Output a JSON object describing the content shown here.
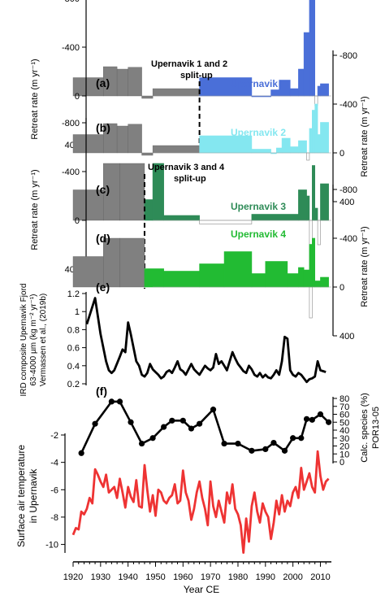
{
  "chart_data": [
    {
      "type": "bar",
      "panel": "(a)",
      "name": "Upernavik 1",
      "color": "#4a6fd8",
      "ylabel": "Retreat rate (m yr⁻¹)",
      "yticks": [
        "-800",
        "-400",
        "0",
        "400"
      ],
      "annotation": [
        "Upernavik 1 and 2",
        "split-up"
      ],
      "segments_pre_splitup": [
        {
          "x0": 1920,
          "x1": 1931,
          "y": -150
        },
        {
          "x0": 1931,
          "x1": 1936,
          "y": -240
        },
        {
          "x0": 1936,
          "x1": 1940,
          "y": -220
        },
        {
          "x0": 1940,
          "x1": 1945,
          "y": -235
        },
        {
          "x0": 1945,
          "x1": 1949,
          "y": 20
        },
        {
          "x0": 1949,
          "x1": 1966,
          "y": -60
        }
      ],
      "segments": [
        {
          "x0": 1966,
          "x1": 1985,
          "y": -150
        },
        {
          "x0": 1985,
          "x1": 1992,
          "y": 0
        },
        {
          "x0": 1992,
          "x1": 1995,
          "y": -50
        },
        {
          "x0": 1995,
          "x1": 1999,
          "y": -130
        },
        {
          "x0": 1999,
          "x1": 2002,
          "y": -60
        },
        {
          "x0": 2002,
          "x1": 2004,
          "y": -220
        },
        {
          "x0": 2004,
          "x1": 2006,
          "y": -520
        },
        {
          "x0": 2006,
          "x1": 2007,
          "y": -880
        },
        {
          "x0": 2007,
          "x1": 2008,
          "y": -1300
        },
        {
          "x0": 2008,
          "x1": 2009,
          "y": 80
        },
        {
          "x0": 2009,
          "x1": 2010,
          "y": -80
        },
        {
          "x0": 2010,
          "x1": 2013,
          "y": -100
        }
      ]
    },
    {
      "type": "bar",
      "panel": "(b)",
      "name": "Upernavik 2",
      "color": "#84e7f0",
      "ylabel": "Retreat rate (m yr⁻¹)",
      "yticks": [
        "-800",
        "-400",
        "0",
        "400"
      ],
      "segments_pre_splitup": [
        {
          "x0": 1920,
          "x1": 1931,
          "y": -150
        },
        {
          "x0": 1931,
          "x1": 1936,
          "y": -240
        },
        {
          "x0": 1936,
          "x1": 1940,
          "y": -220
        },
        {
          "x0": 1940,
          "x1": 1945,
          "y": -235
        },
        {
          "x0": 1945,
          "x1": 1949,
          "y": 20
        },
        {
          "x0": 1949,
          "x1": 1966,
          "y": -60
        }
      ],
      "segments": [
        {
          "x0": 1966,
          "x1": 1985,
          "y": -140
        },
        {
          "x0": 1985,
          "x1": 1992,
          "y": -30
        },
        {
          "x0": 1992,
          "x1": 1994,
          "y": 0
        },
        {
          "x0": 1994,
          "x1": 1996,
          "y": -40
        },
        {
          "x0": 1996,
          "x1": 1999,
          "y": -120
        },
        {
          "x0": 1999,
          "x1": 2002,
          "y": -50
        },
        {
          "x0": 2002,
          "x1": 2005,
          "y": -100
        },
        {
          "x0": 2005,
          "x1": 2006,
          "y": 60
        },
        {
          "x0": 2006,
          "x1": 2007,
          "y": -200
        },
        {
          "x0": 2007,
          "x1": 2008,
          "y": -350
        },
        {
          "x0": 2008,
          "x1": 2009,
          "y": -500
        },
        {
          "x0": 2009,
          "x1": 2010,
          "y": -150
        },
        {
          "x0": 2010,
          "x1": 2013,
          "y": -250
        }
      ]
    },
    {
      "type": "bar",
      "panel": "(c)",
      "name": "Upernavik 3",
      "color": "#2e8b57",
      "ylabel": "Retreat rate (m yr⁻¹)",
      "yticks": [
        "-800",
        "-400",
        "0",
        "400"
      ],
      "annotation": [
        "Upernavik 3 and 4",
        "split-up"
      ],
      "segments_pre_splitup": [
        {
          "x0": 1920,
          "x1": 1931,
          "y": -250
        },
        {
          "x0": 1931,
          "x1": 1937,
          "y": -620
        },
        {
          "x0": 1937,
          "x1": 1946,
          "y": -1000
        }
      ],
      "segments": [
        {
          "x0": 1946,
          "x1": 1949,
          "y": -170
        },
        {
          "x0": 1949,
          "x1": 1953,
          "y": -480
        },
        {
          "x0": 1953,
          "x1": 1966,
          "y": -40
        },
        {
          "x0": 1966,
          "x1": 1985,
          "y": 30
        },
        {
          "x0": 1985,
          "x1": 2002,
          "y": -50
        },
        {
          "x0": 2002,
          "x1": 2005,
          "y": -250
        },
        {
          "x0": 2005,
          "x1": 2006,
          "y": -200
        },
        {
          "x0": 2006,
          "x1": 2007,
          "y": 800
        },
        {
          "x0": 2007,
          "x1": 2008,
          "y": -450
        },
        {
          "x0": 2008,
          "x1": 2009,
          "y": -100
        },
        {
          "x0": 2009,
          "x1": 2010,
          "y": 200
        },
        {
          "x0": 2010,
          "x1": 2013,
          "y": -300
        }
      ]
    },
    {
      "type": "bar",
      "panel": "(d)",
      "name": "Upernavik 4",
      "color": "#22bb33",
      "ylabel": "Retreat rate (m yr⁻¹)",
      "yticks": [
        "-800",
        "-400",
        "0",
        "400"
      ],
      "segments_pre_splitup": [
        {
          "x0": 1920,
          "x1": 1931,
          "y": -250
        },
        {
          "x0": 1931,
          "x1": 1937,
          "y": -620
        },
        {
          "x0": 1937,
          "x1": 1946,
          "y": -1000
        }
      ],
      "segments": [
        {
          "x0": 1946,
          "x1": 1953,
          "y": -150
        },
        {
          "x0": 1953,
          "x1": 1966,
          "y": -130
        },
        {
          "x0": 1966,
          "x1": 1975,
          "y": -190
        },
        {
          "x0": 1975,
          "x1": 1985,
          "y": -290
        },
        {
          "x0": 1985,
          "x1": 1990,
          "y": -110
        },
        {
          "x0": 1990,
          "x1": 1998,
          "y": -210
        },
        {
          "x0": 1998,
          "x1": 2002,
          "y": -110
        },
        {
          "x0": 2002,
          "x1": 2004,
          "y": -160
        },
        {
          "x0": 2004,
          "x1": 2006,
          "y": -140
        },
        {
          "x0": 2006,
          "x1": 2007,
          "y": -350
        },
        {
          "x0": 2007,
          "x1": 2008,
          "y": -650
        },
        {
          "x0": 2008,
          "x1": 2010,
          "y": -50
        },
        {
          "x0": 2010,
          "x1": 2013,
          "y": -80
        }
      ]
    },
    {
      "type": "line",
      "panel": "(e)",
      "color": "#000000",
      "ylabel": [
        "IRD composite Upernavik Fjord",
        "63-4000 µm (kg m⁻² yr⁻¹)",
        "Vermassen et al., (2019b)"
      ],
      "yticks": [
        "0.2",
        "0.4",
        "0.6",
        "0.8",
        "1",
        "1.2"
      ],
      "ylim": [
        0.2,
        1.2
      ],
      "x": [
        1925,
        1928,
        1930,
        1932,
        1933,
        1934,
        1935,
        1937,
        1938,
        1939,
        1940,
        1941,
        1942,
        1943,
        1944,
        1945,
        1946,
        1947,
        1948,
        1949,
        1950,
        1951,
        1952,
        1953,
        1954,
        1955,
        1956,
        1957,
        1958,
        1959,
        1960,
        1961,
        1962,
        1963,
        1964,
        1965,
        1966,
        1967,
        1968,
        1969,
        1970,
        1971,
        1972,
        1973,
        1974,
        1975,
        1976,
        1977,
        1978,
        1979,
        1980,
        1981,
        1982,
        1983,
        1984,
        1985,
        1986,
        1987,
        1988,
        1989,
        1990,
        1991,
        1992,
        1993,
        1994,
        1995,
        1996,
        1997,
        1998,
        1999,
        2000,
        2001,
        2002,
        2003,
        2004,
        2005,
        2006,
        2007,
        2008,
        2009,
        2010,
        2011,
        2012
      ],
      "y": [
        0.86,
        1.15,
        0.75,
        0.45,
        0.35,
        0.32,
        0.35,
        0.5,
        0.58,
        0.55,
        0.88,
        0.75,
        0.6,
        0.45,
        0.4,
        0.3,
        0.28,
        0.32,
        0.42,
        0.36,
        0.33,
        0.3,
        0.26,
        0.28,
        0.33,
        0.35,
        0.32,
        0.38,
        0.45,
        0.36,
        0.34,
        0.3,
        0.36,
        0.42,
        0.36,
        0.33,
        0.3,
        0.35,
        0.4,
        0.37,
        0.35,
        0.38,
        0.53,
        0.42,
        0.45,
        0.4,
        0.35,
        0.45,
        0.55,
        0.48,
        0.42,
        0.38,
        0.34,
        0.32,
        0.4,
        0.36,
        0.3,
        0.28,
        0.32,
        0.27,
        0.3,
        0.27,
        0.26,
        0.3,
        0.35,
        0.3,
        0.45,
        0.72,
        0.7,
        0.35,
        0.3,
        0.28,
        0.32,
        0.3,
        0.26,
        0.22,
        0.25,
        0.26,
        0.28,
        0.45,
        0.35,
        0.34,
        0.33
      ]
    },
    {
      "type": "line",
      "panel": "(f)",
      "color": "#000000",
      "ylabel": [
        "Calc. species (%)",
        "POR13-05"
      ],
      "yticks": [
        "0",
        "10",
        "20",
        "30",
        "40",
        "50",
        "60",
        "70",
        "80"
      ],
      "ylim": [
        0,
        80
      ],
      "x": [
        1923,
        1928,
        1934,
        1937,
        1941,
        1945,
        1949,
        1953,
        1956,
        1960,
        1963,
        1966,
        1971,
        1975,
        1980,
        1985,
        1990,
        1993,
        1997,
        2000,
        2003,
        2005,
        2007,
        2010,
        2013
      ],
      "y": [
        11,
        48,
        76,
        76,
        50,
        23,
        30,
        44,
        52,
        52,
        42,
        48,
        66,
        23,
        23,
        14,
        16,
        24,
        14,
        30,
        30,
        54,
        53,
        60,
        50
      ]
    },
    {
      "type": "line",
      "panel": "surface air temperature",
      "color": "#ee3333",
      "ylabel": [
        "Surface air temperature",
        "in Upernavik"
      ],
      "yticks": [
        "-10",
        "-8",
        "-6",
        "-4",
        "-2"
      ],
      "xlabel": "Year CE",
      "xticks": [
        "1920",
        "1930",
        "1940",
        "1950",
        "1960",
        "1970",
        "1980",
        "1990",
        "2000",
        "2010"
      ],
      "xlim": [
        1920,
        2014
      ],
      "ylim": [
        -11,
        -1.2
      ],
      "x": [
        1920,
        1921,
        1922,
        1923,
        1924,
        1925,
        1926,
        1927,
        1928,
        1929,
        1930,
        1931,
        1932,
        1933,
        1934,
        1935,
        1936,
        1937,
        1938,
        1939,
        1940,
        1941,
        1942,
        1943,
        1944,
        1945,
        1946,
        1947,
        1948,
        1949,
        1950,
        1951,
        1952,
        1953,
        1954,
        1955,
        1956,
        1957,
        1958,
        1959,
        1960,
        1961,
        1962,
        1963,
        1964,
        1965,
        1966,
        1967,
        1968,
        1969,
        1970,
        1971,
        1972,
        1973,
        1974,
        1975,
        1976,
        1977,
        1978,
        1979,
        1980,
        1981,
        1982,
        1983,
        1984,
        1985,
        1986,
        1987,
        1988,
        1989,
        1990,
        1991,
        1992,
        1993,
        1994,
        1995,
        1996,
        1997,
        1998,
        1999,
        2000,
        2001,
        2002,
        2003,
        2004,
        2005,
        2006,
        2007,
        2008,
        2009,
        2010,
        2011,
        2012,
        2013
      ],
      "y": [
        -9.3,
        -8.8,
        -8.9,
        -7.6,
        -7.8,
        -7.4,
        -6.6,
        -7.0,
        -4.5,
        -4.9,
        -5.4,
        -5.8,
        -4.9,
        -6.2,
        -6.0,
        -5.8,
        -6.6,
        -5.2,
        -6.2,
        -7.3,
        -5.8,
        -6.5,
        -6.9,
        -5.3,
        -7.2,
        -7.3,
        -4.2,
        -6.0,
        -7.6,
        -6.4,
        -7.9,
        -6.0,
        -6.2,
        -6.8,
        -7.0,
        -6.6,
        -6.4,
        -5.6,
        -7.0,
        -6.8,
        -4.6,
        -6.2,
        -6.8,
        -8.2,
        -7.4,
        -6.2,
        -5.4,
        -6.6,
        -7.4,
        -8.6,
        -5.4,
        -7.2,
        -8.0,
        -6.8,
        -7.6,
        -8.4,
        -6.2,
        -7.0,
        -5.6,
        -7.4,
        -7.8,
        -8.6,
        -10.6,
        -8.1,
        -9.8,
        -7.2,
        -6.2,
        -7.6,
        -8.4,
        -7.0,
        -7.6,
        -8.0,
        -9.6,
        -8.4,
        -6.8,
        -7.8,
        -6.4,
        -7.6,
        -6.8,
        -7.2,
        -6.2,
        -5.8,
        -6.6,
        -4.4,
        -6.0,
        -5.4,
        -4.8,
        -5.8,
        -6.2,
        -3.2,
        -5.0,
        -6.0,
        -5.4,
        -5.2
      ]
    }
  ]
}
